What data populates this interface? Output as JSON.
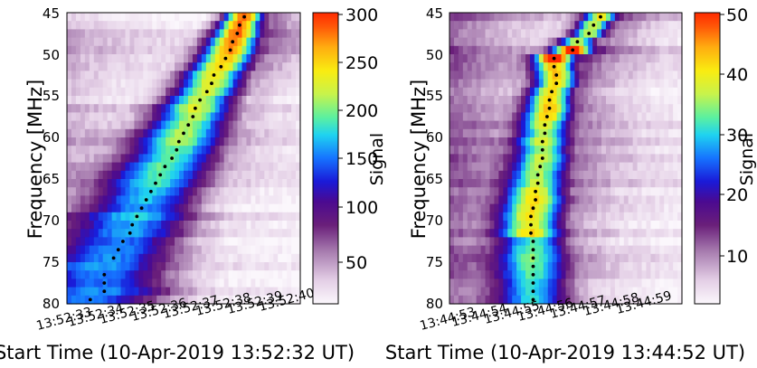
{
  "chart_data": [
    {
      "type": "heatmap",
      "xlabel": "Start Time (10-Apr-2019 13:52:32 UT)",
      "ylabel": "Frequency  [MHz]",
      "x_tick_labels": [
        "13:52:33",
        "13:52:34",
        "13:52:35",
        "13:52:36",
        "13:52:37",
        "13:52:38",
        "13:52:39",
        "13:52:40"
      ],
      "y_tick_labels": [
        "45",
        "50",
        "55",
        "60",
        "65",
        "70",
        "75",
        "80"
      ],
      "ylim": [
        80,
        45
      ],
      "colorbar": {
        "label": "Signal",
        "ticks": [
          "50",
          "100",
          "150",
          "200",
          "250",
          "300"
        ],
        "vmin": 0,
        "vmax": 300,
        "colormap": "gnuplot2-like (white-purple-blue-cyan-yellow-red)"
      },
      "ridge_points": [
        [
          0.1,
          79.5
        ],
        [
          0.16,
          78.5
        ],
        [
          0.16,
          77.5
        ],
        [
          0.16,
          76.5
        ],
        [
          0.2,
          74.5
        ],
        [
          0.22,
          73.5
        ],
        [
          0.24,
          72.5
        ],
        [
          0.27,
          71.5
        ],
        [
          0.28,
          70.5
        ],
        [
          0.3,
          69.5
        ],
        [
          0.32,
          68.5
        ],
        [
          0.34,
          67.5
        ],
        [
          0.36,
          66.5
        ],
        [
          0.38,
          65.5
        ],
        [
          0.4,
          64.5
        ],
        [
          0.42,
          63.5
        ],
        [
          0.45,
          62.5
        ],
        [
          0.47,
          61.5
        ],
        [
          0.48,
          60.5
        ],
        [
          0.5,
          59.5
        ],
        [
          0.52,
          58.5
        ],
        [
          0.54,
          57.5
        ],
        [
          0.55,
          56.5
        ],
        [
          0.57,
          55.5
        ],
        [
          0.6,
          54.5
        ],
        [
          0.62,
          53.5
        ],
        [
          0.63,
          52.5
        ],
        [
          0.66,
          51.5
        ],
        [
          0.68,
          50.5
        ],
        [
          0.7,
          49.5
        ],
        [
          0.71,
          48.5
        ],
        [
          0.73,
          47.5
        ],
        [
          0.74,
          46.5
        ],
        [
          0.76,
          45.5
        ]
      ]
    },
    {
      "type": "heatmap",
      "xlabel": "Start Time (10-Apr-2019 13:44:52 UT)",
      "ylabel": "Frequency  [MHz]",
      "x_tick_labels": [
        "13:44:53",
        "13:44:54",
        "13:44:55",
        "13:44:56",
        "13:44:57",
        "13:44:58",
        "13:44:59"
      ],
      "y_tick_labels": [
        "45",
        "50",
        "55",
        "60",
        "65",
        "70",
        "75",
        "80"
      ],
      "ylim": [
        80,
        45
      ],
      "colorbar": {
        "label": "Signal",
        "ticks": [
          "10",
          "20",
          "30",
          "40",
          "50"
        ],
        "vmin": 0,
        "vmax": 50,
        "colormap": "gnuplot2-like (white-purple-blue-cyan-yellow-red)"
      },
      "ridge_points": [
        [
          0.36,
          79.5
        ],
        [
          0.36,
          78.5
        ],
        [
          0.36,
          77.5
        ],
        [
          0.36,
          76.5
        ],
        [
          0.36,
          75.5
        ],
        [
          0.36,
          74.5
        ],
        [
          0.36,
          73.5
        ],
        [
          0.36,
          72.5
        ],
        [
          0.35,
          71.5
        ],
        [
          0.35,
          70.5
        ],
        [
          0.35,
          69.5
        ],
        [
          0.36,
          68.5
        ],
        [
          0.37,
          67.5
        ],
        [
          0.37,
          66.5
        ],
        [
          0.38,
          65.5
        ],
        [
          0.38,
          64.5
        ],
        [
          0.39,
          63.5
        ],
        [
          0.4,
          62.5
        ],
        [
          0.4,
          61.5
        ],
        [
          0.4,
          60.5
        ],
        [
          0.41,
          59.5
        ],
        [
          0.41,
          58.5
        ],
        [
          0.42,
          57.5
        ],
        [
          0.43,
          56.5
        ],
        [
          0.43,
          55.5
        ],
        [
          0.44,
          54.5
        ],
        [
          0.46,
          53.5
        ],
        [
          0.46,
          52.5
        ],
        [
          0.45,
          51.5
        ],
        [
          0.45,
          50.5
        ],
        [
          0.53,
          49.5
        ],
        [
          0.55,
          48.5
        ],
        [
          0.6,
          47.5
        ],
        [
          0.62,
          46.5
        ],
        [
          0.65,
          45.5
        ]
      ]
    }
  ]
}
